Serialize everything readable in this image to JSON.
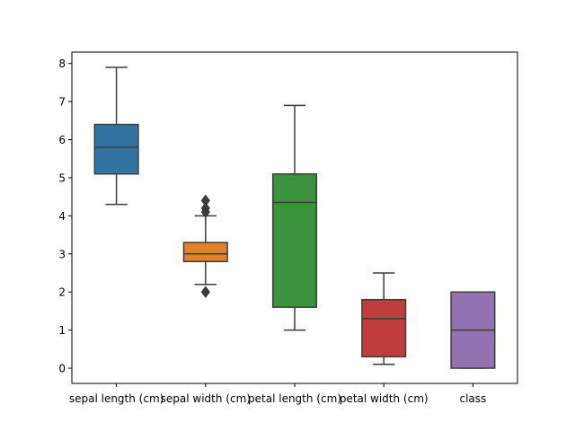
{
  "chart_data": {
    "type": "box",
    "title": "",
    "xlabel": "",
    "ylabel": "",
    "ylim": [
      -0.4,
      8.3
    ],
    "yticks": [
      0,
      1,
      2,
      3,
      4,
      5,
      6,
      7,
      8
    ],
    "categories": [
      "sepal length (cm)",
      "sepal width (cm)",
      "petal length (cm)",
      "petal width (cm)",
      "class"
    ],
    "boxes": [
      {
        "label": "sepal length (cm)",
        "color": "#3274a1",
        "whisker_low": 4.3,
        "q1": 5.1,
        "median": 5.8,
        "q3": 6.4,
        "whisker_high": 7.9,
        "outliers": []
      },
      {
        "label": "sepal width (cm)",
        "color": "#e1812c",
        "whisker_low": 2.2,
        "q1": 2.8,
        "median": 3.0,
        "q3": 3.3,
        "whisker_high": 4.0,
        "outliers": [
          2.0,
          4.1,
          4.2,
          4.4
        ]
      },
      {
        "label": "petal length (cm)",
        "color": "#3a923a",
        "whisker_low": 1.0,
        "q1": 1.6,
        "median": 4.35,
        "q3": 5.1,
        "whisker_high": 6.9,
        "outliers": []
      },
      {
        "label": "petal width (cm)",
        "color": "#c03d3e",
        "whisker_low": 0.1,
        "q1": 0.3,
        "median": 1.3,
        "q3": 1.8,
        "whisker_high": 2.5,
        "outliers": []
      },
      {
        "label": "class",
        "color": "#9372b2",
        "whisker_low": 0,
        "q1": 0,
        "median": 1,
        "q3": 2,
        "whisker_high": 2,
        "outliers": []
      }
    ],
    "grid": false,
    "legend": "none"
  }
}
